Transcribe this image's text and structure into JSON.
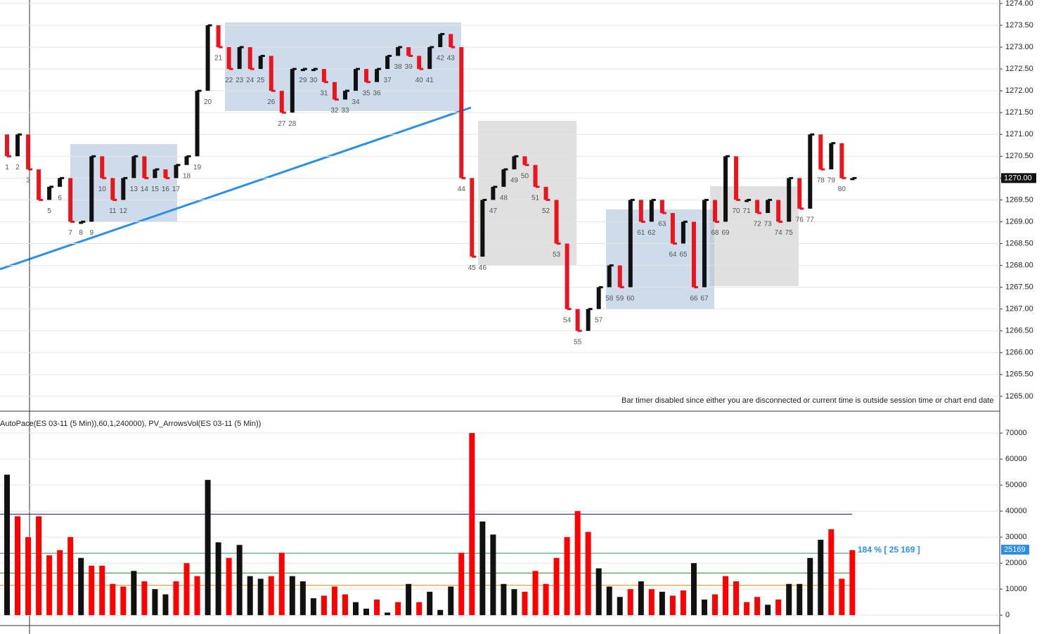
{
  "chart_data": [
    {
      "type": "price",
      "categories": [
        "1",
        "2",
        "3",
        null,
        "5",
        "6",
        "7",
        "8",
        "9",
        "10",
        "11",
        "12",
        "13",
        "14",
        "15",
        "16",
        "17",
        "18",
        "19",
        "20",
        "21",
        "22",
        "23",
        "24",
        "25",
        "26",
        "27",
        "28",
        "29",
        "30",
        "31",
        "32",
        "33",
        "34",
        "35",
        "36",
        "37",
        "38",
        "39",
        "40",
        "41",
        "42",
        "43",
        "44",
        "45",
        "46",
        "47",
        "48",
        "49",
        "50",
        "51",
        "52",
        "53",
        "54",
        "55",
        null,
        "57",
        "58",
        "59",
        "60",
        "61",
        "62",
        "63",
        "64",
        "65",
        "66",
        "67",
        "68",
        "69",
        "70",
        "71",
        "72",
        "73",
        "74",
        "75",
        "76",
        "77",
        "78",
        "79",
        "80",
        null
      ],
      "values": [
        1270.5,
        1271.0,
        1270.2,
        1269.5,
        1269.8,
        1270.0,
        1269.0,
        1269.0,
        1270.5,
        1270.0,
        1269.5,
        1270.0,
        1270.5,
        1270.0,
        1270.2,
        1270.0,
        1270.3,
        1270.5,
        1272.0,
        1273.5,
        1273.0,
        1272.5,
        1273.0,
        1272.5,
        1272.8,
        1272.0,
        1271.5,
        1272.5,
        1272.5,
        1272.5,
        1272.2,
        1271.8,
        1272.0,
        1272.5,
        1272.2,
        1272.5,
        1272.8,
        1273.0,
        1272.8,
        1272.5,
        1273.0,
        1273.3,
        1273.0,
        1270.0,
        1268.2,
        1269.5,
        1269.8,
        1270.2,
        1270.5,
        1270.3,
        1269.8,
        1269.5,
        1268.5,
        1267.0,
        1266.5,
        1267.0,
        1267.5,
        1268.0,
        1267.5,
        1269.5,
        1269.0,
        1269.5,
        1269.2,
        1268.5,
        1269.0,
        1267.5,
        1269.5,
        1269.0,
        1270.5,
        1269.5,
        1269.5,
        1269.2,
        1269.5,
        1269.0,
        1270.0,
        1269.3,
        1271.0,
        1270.2,
        1270.8,
        1270.0,
        1270.0
      ],
      "up_color": "#111111",
      "down_color": "#e8141e",
      "ylim": [
        1264.66,
        1274.08
      ],
      "yticks": [
        {
          "value": 1265,
          "label": "1265.00"
        },
        {
          "value": 1265.5,
          "label": "1265.50"
        },
        {
          "value": 1266,
          "label": "1266.00"
        },
        {
          "value": 1266.5,
          "label": "1266.50"
        },
        {
          "value": 1267,
          "label": "1267.00"
        },
        {
          "value": 1267.5,
          "label": "1267.50"
        },
        {
          "value": 1268,
          "label": "1268.00"
        },
        {
          "value": 1268.5,
          "label": "1268.50"
        },
        {
          "value": 1269,
          "label": "1269.00"
        },
        {
          "value": 1269.5,
          "label": "1269.50"
        },
        {
          "value": 1270,
          "label": "1270.00"
        },
        {
          "value": 1270.5,
          "label": "1270.50"
        },
        {
          "value": 1271,
          "label": "1271.00"
        },
        {
          "value": 1271.5,
          "label": "1271.50"
        },
        {
          "value": 1272,
          "label": "1272.00"
        },
        {
          "value": 1272.5,
          "label": "1272.50"
        },
        {
          "value": 1273,
          "label": "1273.00"
        },
        {
          "value": 1273.5,
          "label": "1273.50"
        },
        {
          "value": 1274,
          "label": "1274.00"
        }
      ],
      "last_price": {
        "value": 1270,
        "label": "1270.00"
      },
      "annotation": "Bar timer disabled since either you are disconnected or current time is outside session time or chart end date",
      "grid": true
    },
    {
      "type": "bar",
      "title": "AutoPace(ES 03-11 (5 Min)),60,1,240000), PV_ArrowsVol(ES 03-11 (5 Min))",
      "values": [
        54000,
        38000,
        30000,
        38000,
        23000,
        25000,
        30000,
        22000,
        19000,
        19000,
        12000,
        11000,
        17000,
        13000,
        10000,
        8000,
        13000,
        20000,
        15000,
        52000,
        28000,
        22000,
        27000,
        15000,
        14000,
        15000,
        24000,
        15000,
        13000,
        6500,
        7500,
        11000,
        8000,
        5000,
        2500,
        6000,
        1000,
        5000,
        12000,
        5000,
        9000,
        2000,
        11000,
        24000,
        70000,
        36000,
        31000,
        12000,
        10000,
        9000,
        17000,
        12000,
        22000,
        30000,
        40000,
        32000,
        18000,
        11000,
        7000,
        10000,
        13000,
        10000,
        9000,
        7500,
        9500,
        20000,
        6000,
        8000,
        15000,
        13000,
        5000,
        7000,
        4000,
        6000,
        12000,
        12000,
        22000,
        29000,
        33000,
        14000,
        25000
      ],
      "bar_colors": [
        "#111",
        "#f00",
        "#f00",
        "#f00",
        "#f00",
        "#f00",
        "#f00",
        "#111",
        "#f00",
        "#f00",
        "#f00",
        "#f00",
        "#111",
        "#f00",
        "#111",
        "#111",
        "#f00",
        "#f00",
        "#f00",
        "#111",
        "#111",
        "#f00",
        "#111",
        "#111",
        "#111",
        "#f00",
        "#f00",
        "#111",
        "#111",
        "#111",
        "#f00",
        "#f00",
        "#f00",
        "#111",
        "#111",
        "#f00",
        "#111",
        "#f00",
        "#111",
        "#f00",
        "#111",
        "#111",
        "#111",
        "#f00",
        "#f00",
        "#111",
        "#111",
        "#111",
        "#111",
        "#f00",
        "#f00",
        "#f00",
        "#f00",
        "#f00",
        "#f00",
        "#f00",
        "#111",
        "#111",
        "#111",
        "#f00",
        "#111",
        "#f00",
        "#111",
        "#f00",
        "#f00",
        "#111",
        "#111",
        "#f00",
        "#f00",
        "#f00",
        "#f00",
        "#f00",
        "#111",
        "#f00",
        "#111",
        "#111",
        "#111",
        "#111",
        "#f00",
        "#f00",
        "#f00"
      ],
      "reference_lines": [
        {
          "value": 38800,
          "color": "#1010a0"
        },
        {
          "value": 23800,
          "color": "#2e8b57"
        },
        {
          "value": 16200,
          "color": "#228b22"
        },
        {
          "value": 11500,
          "color": "#ff8c00"
        }
      ],
      "ylim": [
        -4000,
        77600
      ],
      "yticks": [
        0,
        10000,
        20000,
        30000,
        40000,
        50000,
        60000,
        70000
      ],
      "pace_label": "184 % [ 25 169 ]",
      "last_volume": 25169,
      "grid": true
    }
  ]
}
